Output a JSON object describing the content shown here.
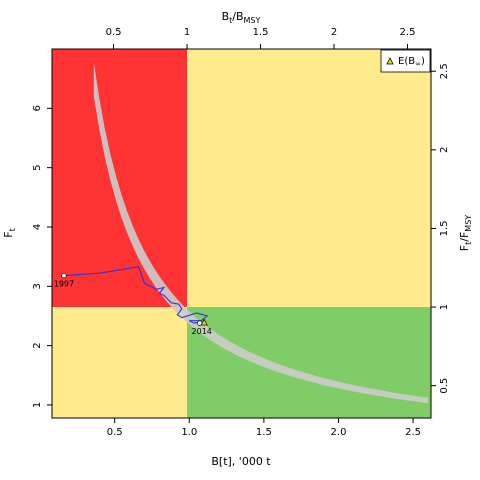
{
  "chart_data": {
    "type": "line",
    "xlabel": "B[t], '000 t",
    "ylabel": "F",
    "ylabel_sub": "t",
    "top_xlabel_main": "B",
    "top_xlabel_sub1": "t",
    "top_xlabel_slash": "/B",
    "top_xlabel_sub2": "MSY",
    "right_ylabel_main": "F",
    "right_ylabel_sub1": "t",
    "right_ylabel_slash": "/F",
    "right_ylabel_sub2": "MSY",
    "xlim": [
      0.08,
      2.62
    ],
    "ylim": [
      0.78,
      7.0
    ],
    "x_ticks": [
      0.5,
      1.0,
      1.5,
      2.0,
      2.5
    ],
    "x_tick_labels": [
      "0.5",
      "1.0",
      "1.5",
      "2.0",
      "2.5"
    ],
    "y_ticks": [
      1,
      2,
      3,
      4,
      5,
      6
    ],
    "y_tick_labels": [
      "1",
      "2",
      "3",
      "4",
      "5",
      "6"
    ],
    "top_ticks": [
      0.5,
      1.0,
      1.5,
      2.0,
      2.5
    ],
    "top_tick_labels": [
      "0.5",
      "1",
      "1.5",
      "2",
      "2.5"
    ],
    "right_ticks": [
      0.5,
      1.0,
      1.5,
      2.0,
      2.5
    ],
    "right_tick_labels": [
      "0.5",
      "1",
      "1.5",
      "2",
      "2.5"
    ],
    "bmsy": 0.985,
    "fmsy": 2.65,
    "zone_colors": {
      "overfished_overfishing": "#ff3333",
      "caution": "#ffea8c",
      "healthy": "#80cc66",
      "band": "#cccccc",
      "trajectory": "#3333dd"
    },
    "trajectory": {
      "x": [
        0.16,
        0.4,
        0.66,
        0.7,
        0.78,
        0.83,
        0.8,
        0.83,
        0.88,
        0.93,
        0.95,
        0.92,
        0.95,
        1.05,
        1.12,
        1.08,
        1.0,
        1.03,
        1.09,
        1.07
      ],
      "y": [
        3.18,
        3.22,
        3.33,
        3.05,
        2.95,
        2.98,
        2.88,
        2.85,
        2.72,
        2.7,
        2.62,
        2.52,
        2.47,
        2.55,
        2.5,
        2.42,
        2.42,
        2.38,
        2.4,
        2.38
      ]
    },
    "start_label": "1997",
    "end_label": "2014",
    "start_point": {
      "x": 0.16,
      "y": 3.18
    },
    "end_point": {
      "x": 1.07,
      "y": 2.38
    },
    "equilibrium_point": {
      "x": 1.1,
      "y": 2.39
    },
    "band_curve": {
      "x_start": 0.36,
      "x_end": 2.6,
      "upper_start_y": 6.78,
      "lower_start_y": 6.2,
      "upper_end_y": 1.12,
      "lower_end_y": 1.03
    },
    "legend": {
      "position": "top-right",
      "label_main": "E(B",
      "label_sub": "∞",
      "label_close": ")"
    }
  }
}
